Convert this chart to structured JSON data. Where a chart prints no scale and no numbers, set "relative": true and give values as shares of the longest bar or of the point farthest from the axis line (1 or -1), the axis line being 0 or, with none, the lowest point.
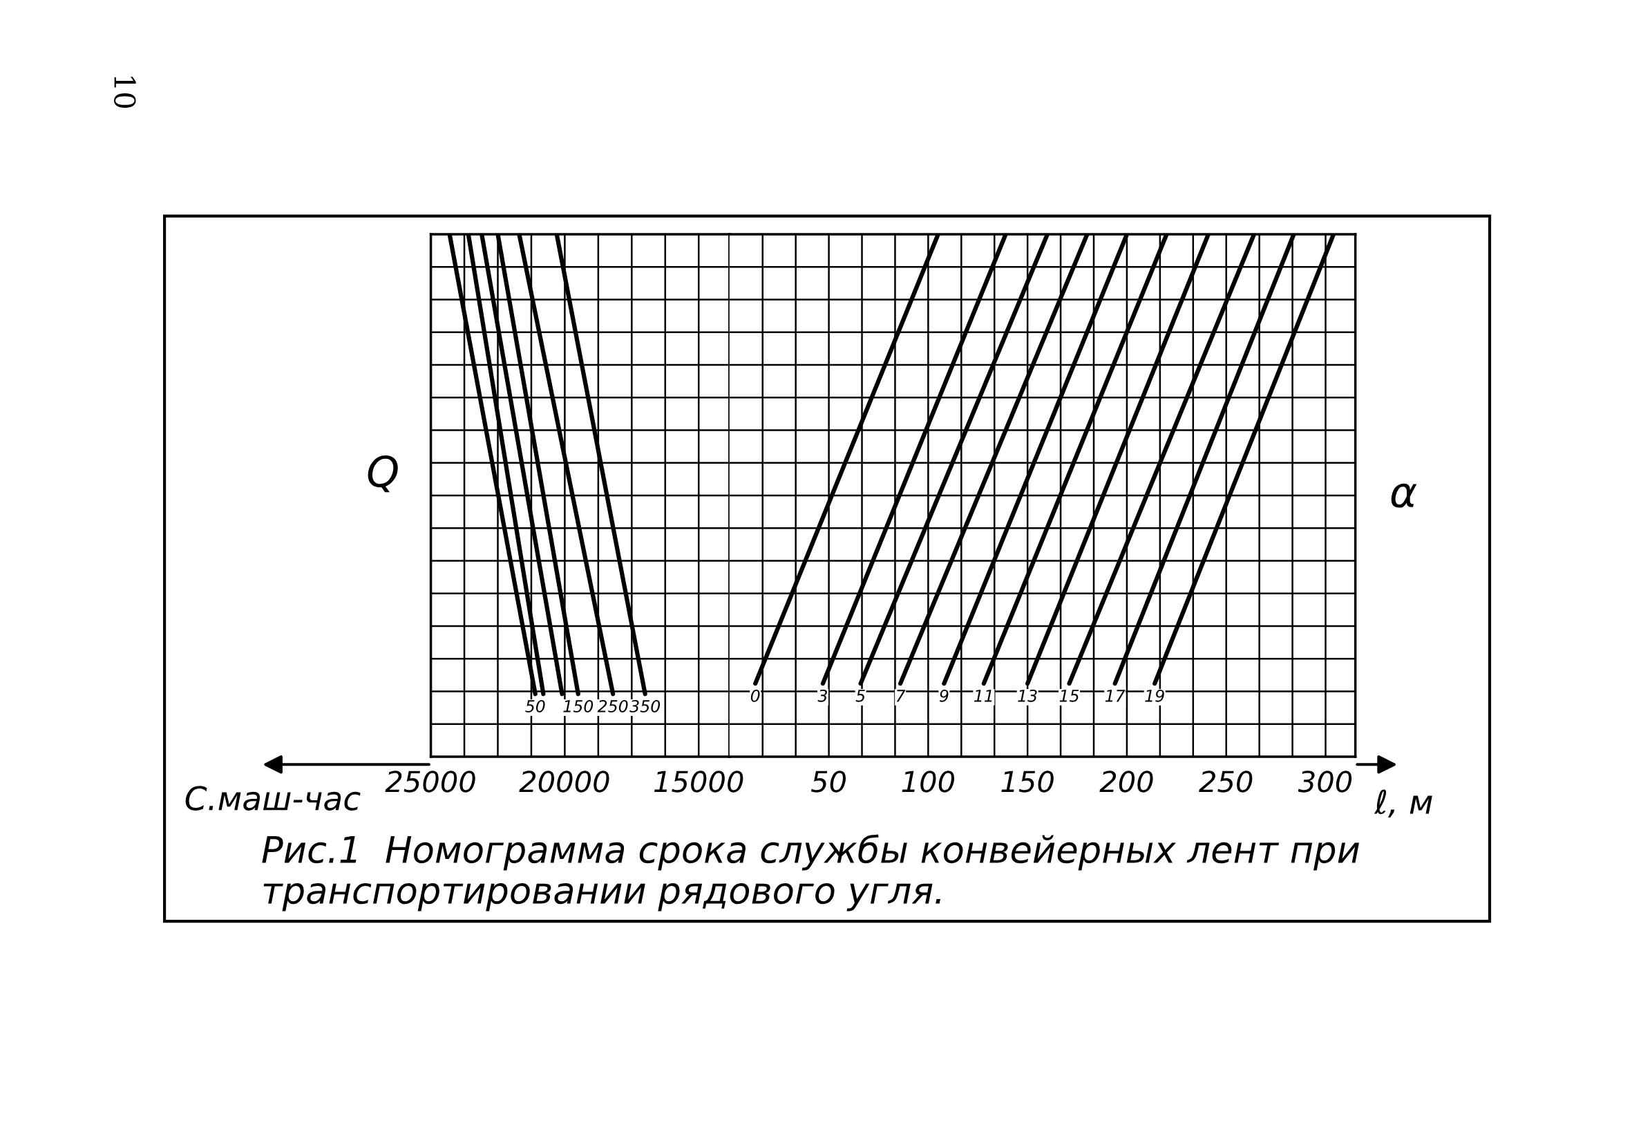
{
  "chart_data": [
    {
      "type": "line",
      "relative": true,
      "xlabel": "С.маш-час",
      "ylabel": "Q",
      "xlim": [
        25000,
        13850
      ],
      "xticks": [
        25000,
        20000,
        15000
      ],
      "tick_labels": "x",
      "grid": true,
      "legend": false,
      "annotations": [
        "10",
        "Рис.1  Номограмма срока службы конвейерных лент при транспортировании рядового угля."
      ],
      "series": [
        {
          "name": "50",
          "color": "#000000",
          "x": [
            21100,
            24300
          ],
          "values": [
            0.12,
            1
          ]
        },
        {
          "color": "#000000",
          "x": [
            20800,
            23600
          ],
          "values": [
            0.12,
            1
          ]
        },
        {
          "color": "#000000",
          "x": [
            20100,
            23100
          ],
          "values": [
            0.12,
            1
          ]
        },
        {
          "name": "150",
          "color": "#000000",
          "x": [
            19500,
            22500
          ],
          "values": [
            0.12,
            1
          ]
        },
        {
          "name": "250",
          "color": "#000000",
          "x": [
            18200,
            21700
          ],
          "values": [
            0.12,
            1
          ]
        },
        {
          "name": "350",
          "color": "#000000",
          "x": [
            17000,
            20300
          ],
          "values": [
            0.12,
            1
          ]
        }
      ]
    },
    {
      "type": "line",
      "relative": true,
      "xlabel": "ℓ, м",
      "y2label": "α",
      "xlim": [
        0,
        315
      ],
      "xticks": [
        50,
        100,
        150,
        200,
        250,
        300
      ],
      "tick_labels": "x",
      "grid": true,
      "legend": false,
      "series": [
        {
          "name": "0",
          "color": "#000000",
          "x": [
            13,
            105
          ],
          "values": [
            0.14,
            1
          ]
        },
        {
          "name": "3",
          "color": "#000000",
          "x": [
            47,
            139
          ],
          "values": [
            0.14,
            1
          ]
        },
        {
          "name": "5",
          "color": "#000000",
          "x": [
            66,
            160
          ],
          "values": [
            0.14,
            1
          ]
        },
        {
          "name": "7",
          "color": "#000000",
          "x": [
            86,
            180
          ],
          "values": [
            0.14,
            1
          ]
        },
        {
          "name": "9",
          "color": "#000000",
          "x": [
            108,
            200
          ],
          "values": [
            0.14,
            1
          ]
        },
        {
          "name": "11",
          "color": "#000000",
          "x": [
            128,
            220
          ],
          "values": [
            0.14,
            1
          ]
        },
        {
          "name": "13",
          "color": "#000000",
          "x": [
            150,
            241
          ],
          "values": [
            0.14,
            1
          ]
        },
        {
          "name": "15",
          "color": "#000000",
          "x": [
            171,
            264
          ],
          "values": [
            0.14,
            1
          ]
        },
        {
          "name": "17",
          "color": "#000000",
          "x": [
            194,
            284
          ],
          "values": [
            0.14,
            1
          ]
        },
        {
          "name": "19",
          "color": "#000000",
          "x": [
            214,
            304
          ],
          "values": [
            0.14,
            1
          ]
        }
      ]
    }
  ]
}
